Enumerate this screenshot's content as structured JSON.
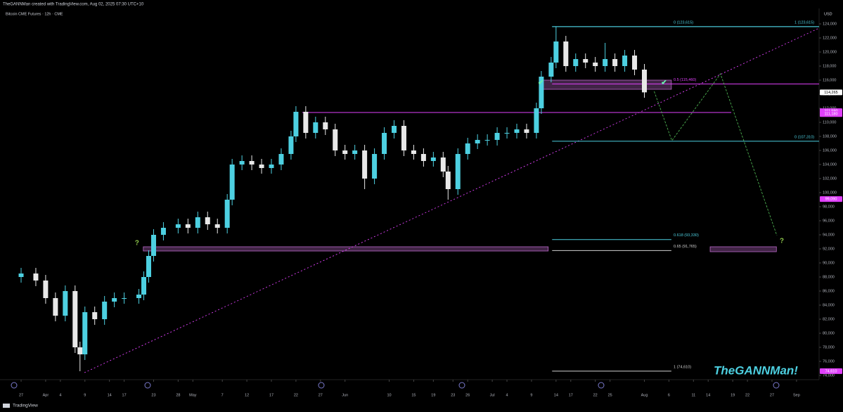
{
  "header": "TheGANNMan created with TradingView.com, Aug 02, 2025 07:30 UTC+10",
  "footer": "TradingView",
  "watermark": "TheGANNMan!",
  "chart_data": {
    "type": "candlestick",
    "title": "Bitcoin CME Futures · 12h · CME",
    "y_unit": "USD",
    "up_color": "#4dd0e1",
    "down_color": "#e8e8e8",
    "grid": false,
    "xlim": [
      81.7,
      248.6
    ],
    "ylim": [
      73400,
      126200
    ],
    "xticks": [
      {
        "value": 86,
        "label": "27"
      },
      {
        "value": 91,
        "label": "Apr"
      },
      {
        "value": 94,
        "label": "4"
      },
      {
        "value": 99,
        "label": "9"
      },
      {
        "value": 104,
        "label": "14"
      },
      {
        "value": 107,
        "label": "17"
      },
      {
        "value": 113,
        "label": "23"
      },
      {
        "value": 118,
        "label": "28"
      },
      {
        "value": 121,
        "label": "May"
      },
      {
        "value": 127,
        "label": "7"
      },
      {
        "value": 132,
        "label": "12"
      },
      {
        "value": 137,
        "label": "17"
      },
      {
        "value": 142,
        "label": "22"
      },
      {
        "value": 147,
        "label": "27"
      },
      {
        "value": 152,
        "label": "Jun"
      },
      {
        "value": 161,
        "label": "10"
      },
      {
        "value": 166,
        "label": "15"
      },
      {
        "value": 170,
        "label": "19"
      },
      {
        "value": 174,
        "label": "23"
      },
      {
        "value": 177,
        "label": "26"
      },
      {
        "value": 182,
        "label": "Jul"
      },
      {
        "value": 185,
        "label": "4"
      },
      {
        "value": 190,
        "label": "9"
      },
      {
        "value": 195,
        "label": "14"
      },
      {
        "value": 198,
        "label": "17"
      },
      {
        "value": 203,
        "label": "22"
      },
      {
        "value": 206,
        "label": "25"
      },
      {
        "value": 213,
        "label": "Aug"
      },
      {
        "value": 218,
        "label": "6"
      },
      {
        "value": 223,
        "label": "11"
      },
      {
        "value": 226,
        "label": "14"
      },
      {
        "value": 231,
        "label": "19"
      },
      {
        "value": 234,
        "label": "22"
      },
      {
        "value": 239,
        "label": "27"
      },
      {
        "value": 244,
        "label": "Sep"
      }
    ],
    "yticks": [
      {
        "value": 74000,
        "label": "74,000"
      },
      {
        "value": 76000,
        "label": "76,000"
      },
      {
        "value": 78000,
        "label": "78,000"
      },
      {
        "value": 80000,
        "label": "80,000"
      },
      {
        "value": 82000,
        "label": "82,000"
      },
      {
        "value": 84000,
        "label": "84,000"
      },
      {
        "value": 86000,
        "label": "86,000"
      },
      {
        "value": 88000,
        "label": "88,000"
      },
      {
        "value": 90000,
        "label": "90,000"
      },
      {
        "value": 92000,
        "label": "92,000"
      },
      {
        "value": 94000,
        "label": "94,000"
      },
      {
        "value": 96000,
        "label": "96,000"
      },
      {
        "value": 98000,
        "label": "98,000"
      },
      {
        "value": 100000,
        "label": "100,000"
      },
      {
        "value": 102000,
        "label": "102,000"
      },
      {
        "value": 104000,
        "label": "104,000"
      },
      {
        "value": 106000,
        "label": "106,000"
      },
      {
        "value": 108000,
        "label": "108,000"
      },
      {
        "value": 110000,
        "label": "110,000"
      },
      {
        "value": 112000,
        "label": "112,000"
      },
      {
        "value": 114000,
        "label": "114,000"
      },
      {
        "value": 116000,
        "label": "116,000"
      },
      {
        "value": 118000,
        "label": "118,000"
      },
      {
        "value": 120000,
        "label": "120,000"
      },
      {
        "value": 122000,
        "label": "122,000"
      },
      {
        "value": 124000,
        "label": "124,000"
      }
    ],
    "x": [
      86,
      89,
      91,
      93,
      95,
      97,
      98,
      99,
      101,
      103,
      105,
      107,
      110,
      111,
      112,
      113,
      115,
      118,
      120,
      122,
      124,
      126,
      128,
      129,
      131,
      133,
      135,
      137,
      139,
      141,
      142,
      144,
      146,
      148,
      150,
      152,
      154,
      156,
      158,
      160,
      162,
      164,
      166,
      168,
      170,
      172,
      173,
      175,
      177,
      179,
      181,
      183,
      185,
      187,
      189,
      191,
      192,
      194,
      195,
      197,
      199,
      201,
      203,
      205,
      207,
      209,
      211,
      213
    ],
    "open": [
      88000,
      88500,
      87500,
      85000,
      82500,
      86000,
      78000,
      77000,
      83000,
      82000,
      84500,
      85000,
      85000,
      85500,
      88000,
      91000,
      94000,
      95000,
      95500,
      95000,
      96500,
      95500,
      95000,
      99000,
      104000,
      104500,
      104000,
      103500,
      104000,
      105500,
      108000,
      111500,
      108500,
      110000,
      109000,
      106000,
      105500,
      106000,
      102000,
      105500,
      108500,
      109500,
      106000,
      105500,
      104500,
      105000,
      103000,
      100500,
      105500,
      107000,
      107500,
      107500,
      108500,
      108500,
      109000,
      108500,
      112000,
      116500,
      118500,
      121500,
      118000,
      119000,
      118500,
      118000,
      119000,
      118000,
      119500,
      117500
    ],
    "high": [
      89300,
      89300,
      88300,
      85800,
      86800,
      86800,
      78800,
      83800,
      83800,
      85300,
      85800,
      85800,
      86300,
      88800,
      91800,
      94800,
      95800,
      96300,
      96300,
      97300,
      97300,
      96300,
      99800,
      104800,
      105300,
      105300,
      104800,
      104800,
      106300,
      108800,
      112300,
      112300,
      110800,
      110800,
      109800,
      106800,
      106800,
      106800,
      106300,
      109300,
      110300,
      110300,
      106800,
      106300,
      105800,
      105800,
      103800,
      106300,
      107800,
      108300,
      108300,
      109300,
      109300,
      109800,
      109800,
      112800,
      117300,
      119300,
      123615,
      122300,
      119800,
      119800,
      119300,
      121300,
      119800,
      120300,
      120300,
      118300
    ],
    "low": [
      87200,
      86700,
      84200,
      81700,
      81700,
      77200,
      74600,
      76200,
      81200,
      81200,
      83700,
      84200,
      84200,
      84700,
      87200,
      90200,
      93200,
      94200,
      94200,
      94200,
      94700,
      94200,
      94200,
      98200,
      103200,
      103200,
      102700,
      102700,
      103200,
      104700,
      107200,
      107700,
      107700,
      108200,
      105200,
      104700,
      104700,
      100500,
      101200,
      104700,
      107700,
      105200,
      104700,
      103700,
      103700,
      102200,
      99000,
      99700,
      104700,
      106200,
      106700,
      106700,
      107700,
      107700,
      107700,
      107700,
      111200,
      115700,
      117700,
      117200,
      117200,
      117700,
      117200,
      117200,
      117200,
      117200,
      116700,
      113500
    ],
    "close": [
      88500,
      87500,
      85000,
      82500,
      86000,
      78000,
      77000,
      83000,
      82000,
      84500,
      85000,
      85000,
      85500,
      88000,
      91000,
      94000,
      95000,
      95500,
      95000,
      96500,
      95500,
      95000,
      99000,
      104000,
      104500,
      104000,
      103500,
      104000,
      105500,
      108000,
      111500,
      108500,
      110000,
      109000,
      106000,
      105500,
      106000,
      102000,
      105500,
      108500,
      109500,
      106000,
      105500,
      104500,
      105000,
      103000,
      100500,
      105500,
      107000,
      107500,
      107500,
      108500,
      108500,
      109000,
      108500,
      112000,
      116500,
      118500,
      121500,
      118000,
      119000,
      118500,
      118000,
      119000,
      118000,
      119500,
      117500,
      114265
    ],
    "levels": [
      {
        "label": "0 (123,615)",
        "value": 123615,
        "x0": 194.2,
        "x1": 248.6,
        "color": "#4dd0e1"
      },
      {
        "label": "1 (123,615)",
        "value": 123615,
        "x0": 194.2,
        "x1": 248.6,
        "color": "#4dd0e1"
      },
      {
        "label": "0.5 (115,460)",
        "value": 115460,
        "x0": 194.2,
        "x1": 248.6,
        "color": "#e040fb"
      },
      {
        "label": "0 (107,310)",
        "value": 107310,
        "x0": 194.2,
        "x1": 248.6,
        "color": "#4dd0e1"
      },
      {
        "label": "0.618 (93,330)",
        "value": 93330,
        "x0": 194.2,
        "x1": 218.5,
        "color": "#4dd0e1"
      },
      {
        "label": "0.65 (91,765)",
        "value": 91765,
        "x0": 194.2,
        "x1": 218.5,
        "color": "#d0d0d0"
      },
      {
        "label": "1 (74,610)",
        "value": 74610,
        "x0": 194.2,
        "x1": 218.5,
        "color": "#d0d0d0"
      }
    ],
    "resistance": {
      "value": 111400,
      "x0": 143.3,
      "x1": 230.7,
      "color": "#e040fb"
    },
    "zones": [
      {
        "low": 114700,
        "high": 116000,
        "x0": 191.6,
        "x1": 218.5
      },
      {
        "low": 91700,
        "high": 92300,
        "x0": 110.9,
        "x1": 193.4
      },
      {
        "low": 91600,
        "high": 92300,
        "x0": 226.4,
        "x1": 239.9
      }
    ],
    "trendline": {
      "x": [
        98.9,
        248.6
      ],
      "y": [
        74400,
        123400
      ],
      "color": "#e040fb"
    },
    "projection": {
      "x": [
        215.0,
        218.6,
        228.5,
        240.0
      ],
      "y": [
        114400,
        107400,
        116900,
        93900
      ],
      "color": "#4caf50"
    },
    "price_tags": [
      {
        "value": 114265,
        "label": "114,265",
        "color": "#ffffff"
      },
      {
        "value": 111590,
        "label": "111,590",
        "color": "#e040fb"
      },
      {
        "value": 111180,
        "label": "111,180",
        "color": "#e040fb"
      },
      {
        "value": 99090,
        "label": "99,090",
        "color": "#e040fb"
      },
      {
        "value": 74610,
        "label": "74,610",
        "color": "#e040fb"
      }
    ],
    "marks": [
      {
        "label": "✔",
        "x": 191.9,
        "y": 115600,
        "color": "#69f0ae"
      },
      {
        "label": "✔",
        "x": 217.0,
        "y": 115600,
        "color": "#69f0ae"
      },
      {
        "label": "?",
        "x": 109.6,
        "y": 92800,
        "color": "#8bc34a"
      },
      {
        "label": "?",
        "x": 241.0,
        "y": 93100,
        "color": "#8bc34a"
      }
    ]
  }
}
